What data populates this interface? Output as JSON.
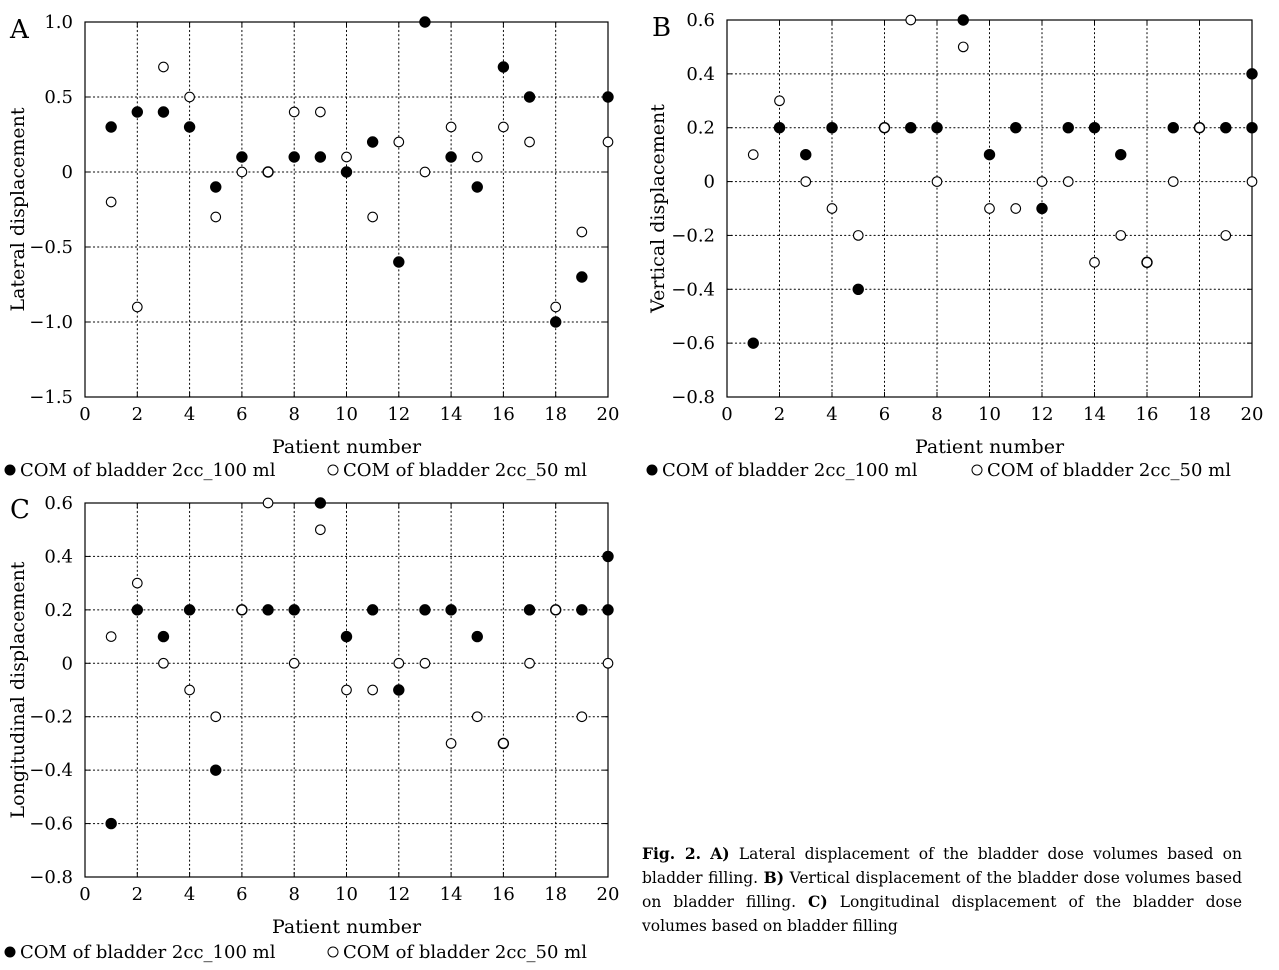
{
  "chart_data": [
    {
      "panel_letter": "A",
      "type": "scatter",
      "xlabel": "Patient number",
      "ylabel": "Lateral displacement",
      "xlim": [
        0,
        20
      ],
      "ylim": [
        -1.5,
        1.0
      ],
      "x_ticks": [
        0,
        2,
        4,
        6,
        8,
        10,
        12,
        14,
        16,
        18,
        20
      ],
      "y_ticks": [
        -1.5,
        -1.0,
        -0.5,
        0,
        0.5,
        1.0
      ],
      "y_tick_labels": [
        "−1.5",
        "−1.0",
        "−0.5",
        "0",
        "0.5",
        "1.0"
      ],
      "grid": true,
      "legend_position": "bottom",
      "series": [
        {
          "name": "COM of bladder 2cc_100 ml",
          "marker": "filled-circle",
          "color": "#000000",
          "x": [
            1,
            2,
            3,
            4,
            5,
            6,
            7,
            8,
            9,
            10,
            11,
            12,
            13,
            14,
            15,
            16,
            17,
            18,
            19,
            20
          ],
          "y": [
            0.3,
            0.4,
            0.4,
            0.3,
            -0.1,
            0.1,
            0.0,
            0.1,
            0.1,
            0.0,
            0.2,
            -0.6,
            1.0,
            0.1,
            -0.1,
            0.7,
            0.5,
            -1.0,
            -0.7,
            0.5
          ]
        },
        {
          "name": "COM of bladder 2cc_50 ml",
          "marker": "open-circle",
          "color": "#000000",
          "x": [
            1,
            2,
            3,
            4,
            5,
            6,
            7,
            8,
            9,
            10,
            11,
            12,
            13,
            14,
            15,
            16,
            17,
            18,
            19,
            20
          ],
          "y": [
            -0.2,
            -0.9,
            0.7,
            0.5,
            -0.3,
            0.0,
            0.0,
            0.4,
            0.4,
            0.1,
            -0.3,
            0.2,
            0.0,
            0.3,
            0.1,
            0.3,
            0.2,
            -0.9,
            -0.4,
            0.2
          ]
        }
      ]
    },
    {
      "panel_letter": "B",
      "type": "scatter",
      "xlabel": "Patient number",
      "ylabel": "Vertical displacement",
      "xlim": [
        0,
        20
      ],
      "ylim": [
        -0.8,
        0.6
      ],
      "x_ticks": [
        0,
        2,
        4,
        6,
        8,
        10,
        12,
        14,
        16,
        18,
        20
      ],
      "y_ticks": [
        -0.8,
        -0.6,
        -0.4,
        -0.2,
        0,
        0.2,
        0.4,
        0.6
      ],
      "y_tick_labels": [
        "−0.8",
        "−0.6",
        "−0.4",
        "−0.2",
        "0",
        "0.2",
        "0.4",
        "0.6"
      ],
      "grid": true,
      "legend_position": "bottom",
      "series": [
        {
          "name": "COM of bladder 2cc_100 ml",
          "marker": "filled-circle",
          "color": "#000000",
          "x": [
            1,
            2,
            3,
            4,
            5,
            6,
            7,
            8,
            9,
            10,
            11,
            12,
            13,
            14,
            15,
            16,
            17,
            18,
            19,
            20,
            20
          ],
          "y": [
            -0.6,
            0.2,
            0.1,
            0.2,
            -0.4,
            0.2,
            0.2,
            0.2,
            0.6,
            0.1,
            0.2,
            -0.1,
            0.2,
            0.2,
            0.1,
            -0.3,
            0.2,
            0.2,
            0.2,
            0.2,
            0.4
          ]
        },
        {
          "name": "COM of bladder 2cc_50 ml",
          "marker": "open-circle",
          "color": "#000000",
          "x": [
            1,
            2,
            3,
            4,
            5,
            6,
            7,
            8,
            9,
            10,
            11,
            12,
            13,
            14,
            15,
            16,
            17,
            18,
            19,
            20
          ],
          "y": [
            0.1,
            0.3,
            0.0,
            -0.1,
            -0.2,
            0.2,
            0.6,
            0.0,
            0.5,
            -0.1,
            -0.1,
            0.0,
            0.0,
            -0.3,
            -0.2,
            -0.3,
            0.0,
            0.2,
            -0.2,
            0.0
          ]
        }
      ]
    },
    {
      "panel_letter": "C",
      "type": "scatter",
      "xlabel": "Patient number",
      "ylabel": "Longitudinal displacement",
      "xlim": [
        0,
        20
      ],
      "ylim": [
        -0.8,
        0.6
      ],
      "x_ticks": [
        0,
        2,
        4,
        6,
        8,
        10,
        12,
        14,
        16,
        18,
        20
      ],
      "y_ticks": [
        -0.8,
        -0.6,
        -0.4,
        -0.2,
        0,
        0.2,
        0.4,
        0.6
      ],
      "y_tick_labels": [
        "−0.8",
        "−0.6",
        "−0.4",
        "−0.2",
        "0",
        "0.2",
        "0.4",
        "0.6"
      ],
      "grid": true,
      "legend_position": "bottom",
      "series": [
        {
          "name": "COM of bladder 2cc_100 ml",
          "marker": "filled-circle",
          "color": "#000000",
          "x": [
            1,
            2,
            3,
            4,
            5,
            6,
            7,
            8,
            9,
            10,
            11,
            12,
            13,
            14,
            15,
            16,
            17,
            18,
            19,
            20,
            20
          ],
          "y": [
            -0.6,
            0.2,
            0.1,
            0.2,
            -0.4,
            0.2,
            0.2,
            0.2,
            0.6,
            0.1,
            0.2,
            -0.1,
            0.2,
            0.2,
            0.1,
            -0.3,
            0.2,
            0.2,
            0.2,
            0.2,
            0.4
          ]
        },
        {
          "name": "COM of bladder 2cc_50 ml",
          "marker": "open-circle",
          "color": "#000000",
          "x": [
            1,
            2,
            3,
            4,
            5,
            6,
            7,
            8,
            9,
            10,
            11,
            12,
            13,
            14,
            15,
            16,
            17,
            18,
            19,
            20
          ],
          "y": [
            0.1,
            0.3,
            0.0,
            -0.1,
            -0.2,
            0.2,
            0.6,
            0.0,
            0.5,
            -0.1,
            -0.1,
            0.0,
            0.0,
            -0.3,
            -0.2,
            -0.3,
            0.0,
            0.2,
            -0.2,
            0.0
          ]
        }
      ]
    }
  ],
  "caption": {
    "label": "Fig. 2.",
    "part_a_letter": "A)",
    "part_a_text": " Lateral displacement of the bladder dose volumes based on bladder filling. ",
    "part_b_letter": "B)",
    "part_b_text": " Vertical displacement of the bladder dose volumes based on bladder filling. ",
    "part_c_letter": "C)",
    "part_c_text": " Longitudinal displacement of the bladder dose volumes based on bladder filling"
  }
}
